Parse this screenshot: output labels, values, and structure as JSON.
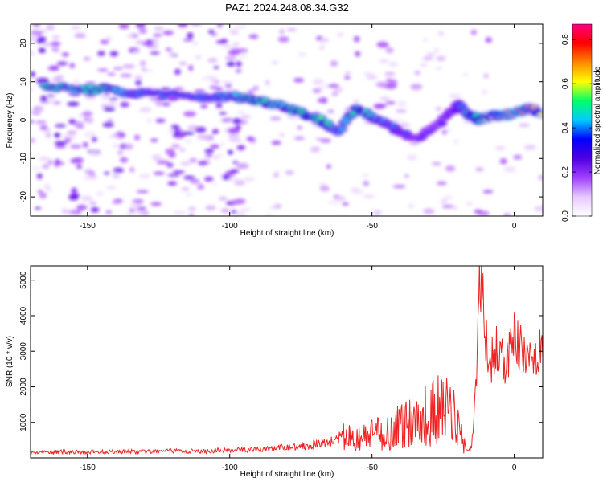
{
  "title": "PAZ1.2024.248.08.34.G32",
  "chart_data": [
    {
      "type": "heatmap",
      "xlabel": "Height of straight line (km)",
      "ylabel": "Frequency (Hz)",
      "xlim": [
        -170,
        10
      ],
      "ylim": [
        -25,
        25
      ],
      "x_ticks": [
        -150,
        -100,
        -50,
        0
      ],
      "x_tick_labels": [
        "-150",
        "-100",
        "-50",
        "0"
      ],
      "y_ticks": [
        -20,
        -10,
        0,
        10,
        20
      ],
      "y_tick_labels": [
        "-20",
        "-10",
        "0",
        "10",
        "20"
      ],
      "colorbar": {
        "label": "Normalized spectral amplitude",
        "range": [
          0,
          0.87
        ],
        "ticks": [
          0.0,
          0.2,
          0.4,
          0.6,
          0.8
        ],
        "tick_labels": [
          "0.0",
          "0.2",
          "0.4",
          "0.6",
          "0.8"
        ],
        "colors": [
          "#ffffff",
          "#e6c8ff",
          "#a040ff",
          "#5000e0",
          "#0000ff",
          "#00ccff",
          "#00ff66",
          "#ffff00",
          "#ff8800",
          "#ff0000",
          "#ff0080"
        ]
      },
      "ridge": {
        "x": [
          -165,
          -155,
          -145,
          -135,
          -125,
          -115,
          -105,
          -97,
          -90,
          -82,
          -75,
          -68,
          -62,
          -55,
          -50,
          -45,
          -40,
          -35,
          -30,
          -25,
          -20,
          -15,
          -12,
          -8,
          -4,
          0,
          5,
          10
        ],
        "y": [
          9,
          8,
          8,
          7,
          7,
          6,
          6,
          6,
          5,
          4,
          2,
          0,
          -3,
          3,
          1,
          -1,
          -3,
          -5,
          -3,
          0,
          4,
          1,
          0,
          1,
          1,
          2,
          3,
          2
        ],
        "amplitude": [
          0.5,
          0.45,
          0.5,
          0.4,
          0.4,
          0.4,
          0.4,
          0.45,
          0.5,
          0.45,
          0.5,
          0.55,
          0.4,
          0.5,
          0.45,
          0.4,
          0.4,
          0.35,
          0.3,
          0.3,
          0.35,
          0.5,
          0.55,
          0.65,
          0.7,
          0.75,
          0.7,
          0.6
        ]
      }
    },
    {
      "type": "line",
      "xlabel": "Height of straight line (km)",
      "ylabel": "SNR (10 * v/v)",
      "xlim": [
        -170,
        10
      ],
      "ylim": [
        0,
        5400
      ],
      "x_ticks": [
        -150,
        -100,
        -50,
        0
      ],
      "x_tick_labels": [
        "-150",
        "-100",
        "-50",
        "0"
      ],
      "y_ticks": [
        1000,
        2000,
        3000,
        4000,
        5000
      ],
      "y_tick_labels": [
        "1000",
        "2000",
        "3000",
        "4000",
        "5000"
      ],
      "color": "#ee2222",
      "series": [
        {
          "x": [
            -170,
            -160,
            -150,
            -140,
            -130,
            -120,
            -110,
            -100,
            -90,
            -80,
            -70,
            -65,
            -60,
            -55,
            -50,
            -45,
            -40,
            -35,
            -30,
            -25,
            -20,
            -17,
            -15,
            -13,
            -12,
            -10,
            -8,
            -6,
            -4,
            -2,
            0,
            2,
            4,
            6,
            8,
            10
          ],
          "y": [
            150,
            170,
            160,
            180,
            170,
            200,
            180,
            220,
            230,
            300,
            380,
            430,
            600,
            500,
            650,
            700,
            900,
            1100,
            1200,
            1400,
            1100,
            200,
            300,
            2500,
            5400,
            3200,
            2800,
            3000,
            2700,
            2900,
            3300,
            3100,
            2600,
            2900,
            3000,
            2800
          ]
        }
      ]
    }
  ]
}
